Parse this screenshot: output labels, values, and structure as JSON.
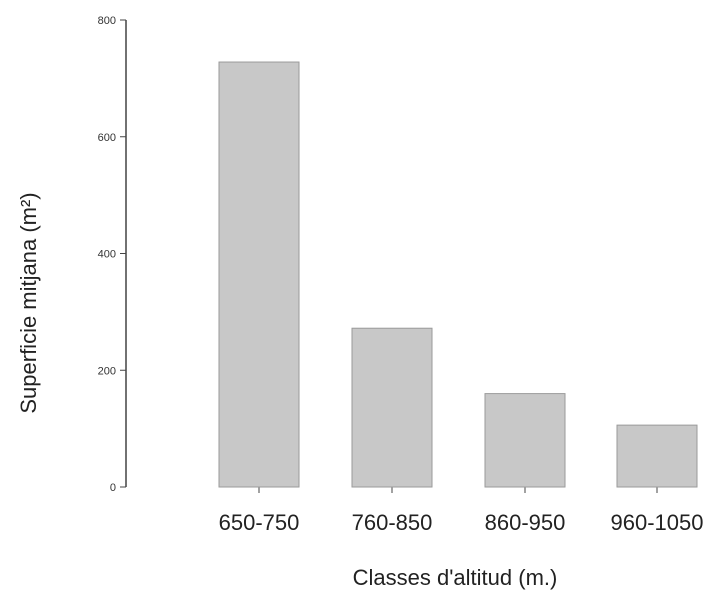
{
  "chart_data": {
    "type": "bar",
    "categories": [
      "650-750",
      "760-850",
      "860-950",
      "960-1050"
    ],
    "values": [
      728,
      272,
      160,
      106
    ],
    "xlabel": "Classes d'altitud (m.)",
    "ylabel": "Superficie mitjana (m²)",
    "ylim": [
      0,
      800
    ],
    "yticks": [
      0,
      200,
      400,
      600,
      800
    ],
    "grid": false,
    "legend": "none",
    "colors": {
      "bar": "#c8c8c8",
      "bar_edge": "#9a9a9a",
      "axis": "#444444"
    }
  }
}
